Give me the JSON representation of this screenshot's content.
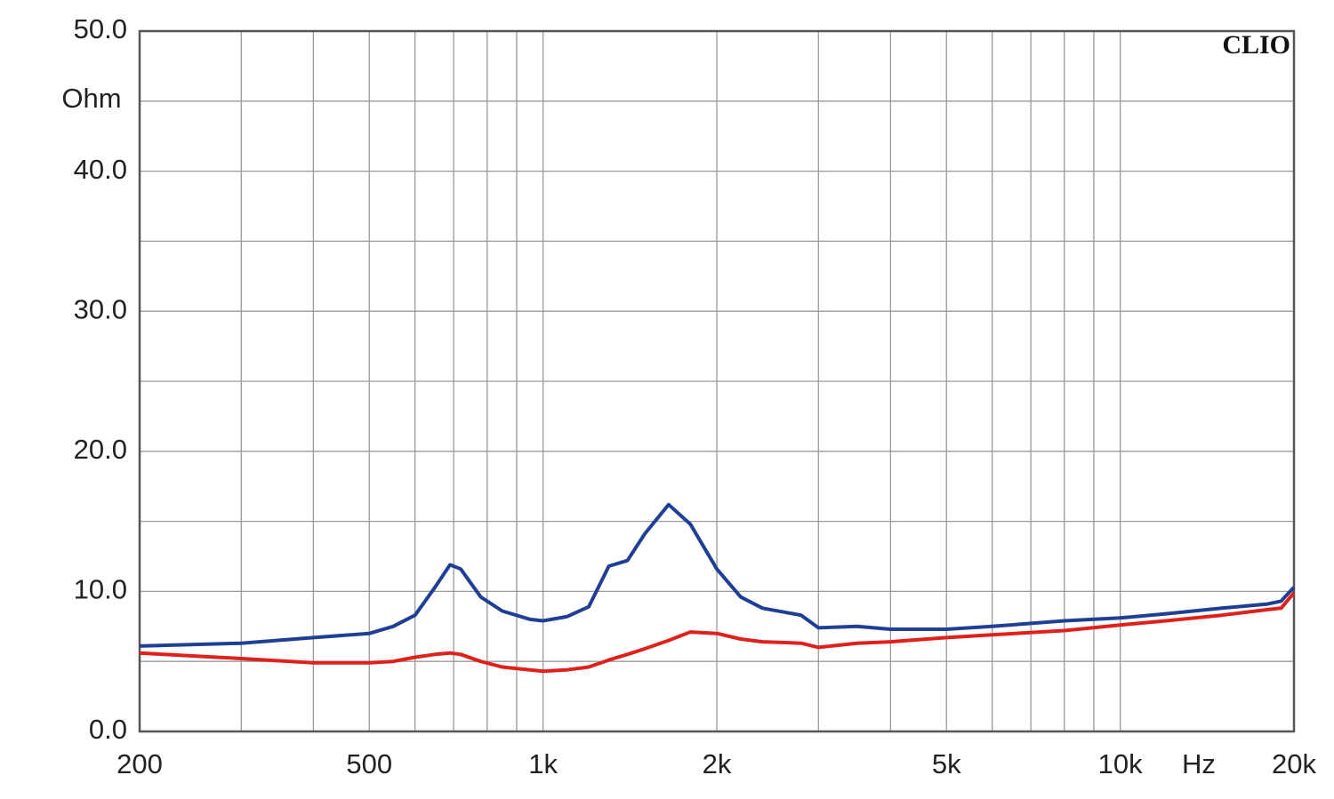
{
  "chart_data": {
    "type": "line",
    "y_label": "Ohm",
    "x_label": "Hz",
    "watermark": "CLIO",
    "x": [
      200,
      300,
      400,
      500,
      550,
      600,
      650,
      690,
      720,
      780,
      850,
      950,
      1000,
      1100,
      1200,
      1300,
      1400,
      1500,
      1650,
      1800,
      2000,
      2200,
      2400,
      2800,
      3000,
      3500,
      4000,
      5000,
      6000,
      8000,
      10000,
      12000,
      15000,
      18000,
      19000,
      20000
    ],
    "series": [
      {
        "color": "#1f3f95",
        "values": [
          6.1,
          6.3,
          6.7,
          7.0,
          7.5,
          8.3,
          10.3,
          11.9,
          11.6,
          9.6,
          8.6,
          8.0,
          7.9,
          8.2,
          8.9,
          11.8,
          12.2,
          14.1,
          16.2,
          14.8,
          11.6,
          9.6,
          8.8,
          8.3,
          7.4,
          7.5,
          7.3,
          7.3,
          7.5,
          7.9,
          8.1,
          8.4,
          8.8,
          9.1,
          9.3,
          10.3
        ]
      },
      {
        "color": "#e0201b",
        "values": [
          5.6,
          5.2,
          4.9,
          4.9,
          5.0,
          5.3,
          5.5,
          5.6,
          5.5,
          5.0,
          4.6,
          4.4,
          4.3,
          4.4,
          4.6,
          5.1,
          5.5,
          5.9,
          6.5,
          7.1,
          7.0,
          6.6,
          6.4,
          6.3,
          6.0,
          6.3,
          6.4,
          6.7,
          6.9,
          7.2,
          7.6,
          7.9,
          8.3,
          8.7,
          8.8,
          9.9
        ]
      }
    ],
    "xlim": [
      200,
      20000
    ],
    "xlog": true,
    "xticks": [
      200,
      500,
      {
        "value": 1000,
        "label": "1k"
      },
      {
        "value": 2000,
        "label": "2k"
      },
      {
        "value": 5000,
        "label": "5k"
      },
      {
        "value": 10000,
        "label": "10k"
      },
      {
        "value": 20000,
        "label": "20k"
      }
    ],
    "xminor": [
      300,
      400,
      600,
      700,
      800,
      900,
      3000,
      4000,
      6000,
      7000,
      8000,
      9000
    ],
    "ylim": [
      0,
      50
    ],
    "yticks": [
      {
        "value": 0,
        "label": "0.0"
      },
      {
        "value": 10,
        "label": "10.0"
      },
      {
        "value": 20,
        "label": "20.0"
      },
      {
        "value": 30,
        "label": "30.0"
      },
      {
        "value": 40,
        "label": "40.0"
      },
      {
        "value": 50,
        "label": "50.0"
      }
    ],
    "yminor": [
      5,
      15,
      25,
      35,
      45
    ],
    "grid": true
  }
}
